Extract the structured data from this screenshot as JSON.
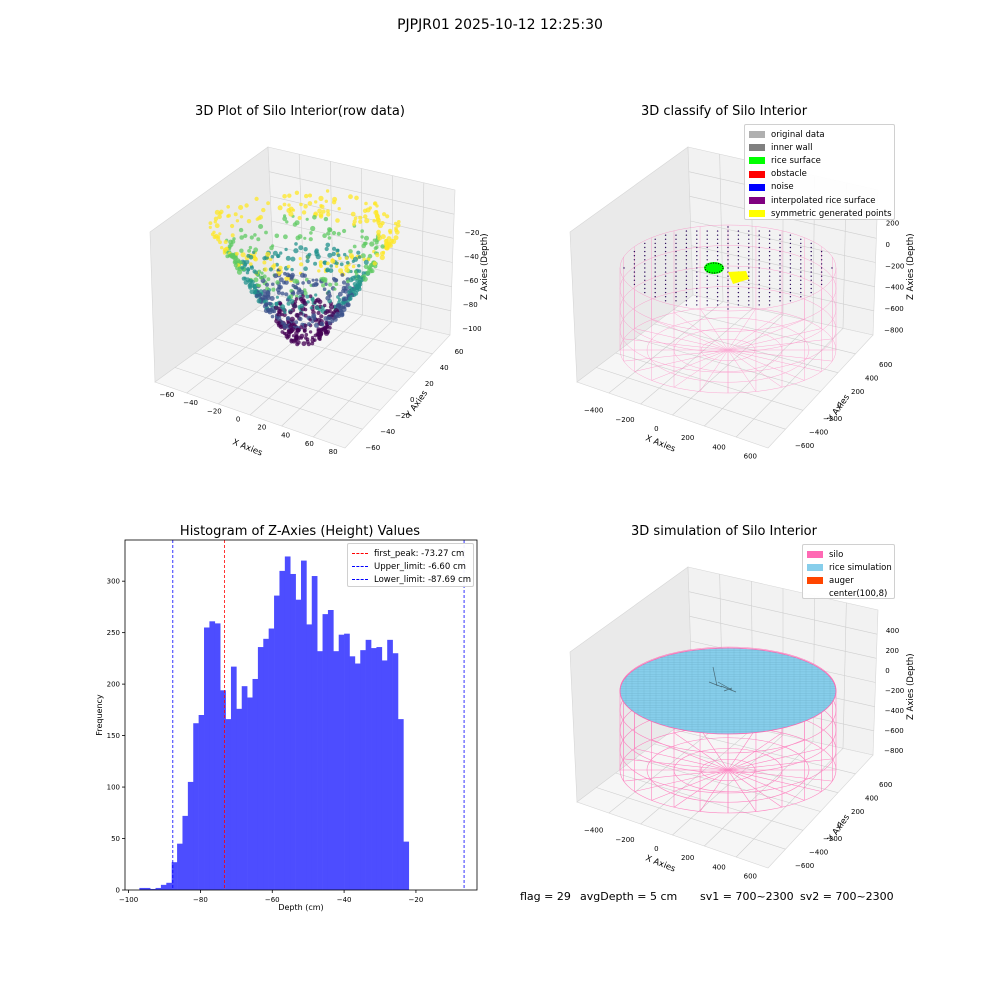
{
  "suptitle": "PJPJR01 2025-10-12 12:25:30",
  "status": {
    "flag": "flag = 29",
    "avg_depth": "avgDepth = 5 cm",
    "sv1": "sv1 = 700~2300",
    "sv2": "sv2 = 700~2300"
  },
  "colors": {
    "histogram_bar": "#4d4dff",
    "silo": "#ff69b4",
    "rice_surface": "#00ff00",
    "rice_simulation": "#87ceeb",
    "obstacle": "#ff0000",
    "noise": "#0000ff",
    "interpolated": "#800080",
    "symmetric": "#ffff00",
    "auger": "#ff4500",
    "original": "#b0b0b0",
    "inner_wall": "#808080"
  },
  "chart_data": [
    {
      "type": "scatter",
      "projection": "3d",
      "title": "3D Plot of Silo Interior(row data)",
      "xlabel": "X Axies",
      "ylabel": "Y Axies",
      "zlabel": "Z Axies (Depth)",
      "xticks": [
        "−60",
        "−40",
        "−20",
        "0",
        "20",
        "40",
        "60",
        "80"
      ],
      "yticks": [
        "−60",
        "−40",
        "−20",
        "0",
        "20",
        "40",
        "60"
      ],
      "zticks": [
        "−20",
        "−40",
        "−60",
        "−80",
        "−100"
      ],
      "xlim": [
        -65,
        85
      ],
      "ylim": [
        -65,
        65
      ],
      "zlim": [
        -100,
        -15
      ],
      "colormap": "viridis",
      "grid": true
    },
    {
      "type": "scatter",
      "projection": "3d",
      "title": "3D classify of Silo Interior",
      "zlabel": "Z Axies (Depth)",
      "xlabel": "X Axies",
      "ylabel": "Y Axies",
      "xticks": [
        "−400",
        "−200",
        "0",
        "200",
        "400",
        "600"
      ],
      "yticks": [
        "−600",
        "−400",
        "−200",
        "0",
        "200",
        "400",
        "600"
      ],
      "zticks": [
        "200",
        "0",
        "−200",
        "−400",
        "−600",
        "−800"
      ],
      "zticks_top_partial": "00",
      "legend": [
        "original data",
        "inner wall",
        "rice surface",
        "obstacle",
        "noise",
        "interpolated rice surface",
        "symmetric generated points"
      ],
      "legend_position": "upper right",
      "grid": true
    },
    {
      "type": "bar",
      "title": "Histogram of Z-Axies (Height) Values",
      "xlabel": "Depth (cm)",
      "ylabel": "Frequency",
      "xlim": [
        -101,
        -3
      ],
      "ylim": [
        0,
        340
      ],
      "xticks": [
        -100,
        -80,
        -60,
        -40,
        -20
      ],
      "xtick_labels": [
        "−100",
        "−80",
        "−60",
        "−40",
        "−20"
      ],
      "yticks": [
        0,
        50,
        100,
        150,
        200,
        250,
        300
      ],
      "bin_start": -97,
      "bin_width": 1.5,
      "values": [
        2,
        2,
        1,
        2,
        5,
        7,
        27,
        45,
        72,
        105,
        162,
        170,
        255,
        261,
        259,
        194,
        166,
        217,
        176,
        198,
        187,
        205,
        236,
        244,
        254,
        286,
        310,
        324,
        307,
        282,
        320,
        258,
        305,
        232,
        268,
        272,
        232,
        248,
        249,
        227,
        220,
        233,
        243,
        235,
        236,
        223,
        243,
        230,
        166,
        47
      ],
      "vlines": [
        {
          "label": "first_peak: -73.27 cm",
          "x": -73.27,
          "color": "#ff0000"
        },
        {
          "label": "Upper_limit: -6.60 cm",
          "x": -6.6,
          "color": "#0000ff"
        },
        {
          "label": "Lower_limit: -87.69 cm",
          "x": -87.69,
          "color": "#0000ff"
        }
      ],
      "legend_position": "upper right",
      "grid": false
    },
    {
      "type": "scatter",
      "projection": "3d",
      "title": "3D simulation of Silo Interior",
      "zlabel": "Z Axies (Depth)",
      "xlabel": "X Axies",
      "ylabel": "Y Axies",
      "xticks": [
        "−400",
        "−200",
        "0",
        "200",
        "400",
        "600"
      ],
      "yticks": [
        "−600",
        "−400",
        "−200",
        "0",
        "200",
        "400",
        "600"
      ],
      "zticks": [
        "400",
        "200",
        "0",
        "−200",
        "−400",
        "−600",
        "−800"
      ],
      "legend": [
        "silo",
        "rice simulation",
        "auger",
        "center(100,8)"
      ],
      "legend_position": "upper right",
      "grid": true
    }
  ]
}
